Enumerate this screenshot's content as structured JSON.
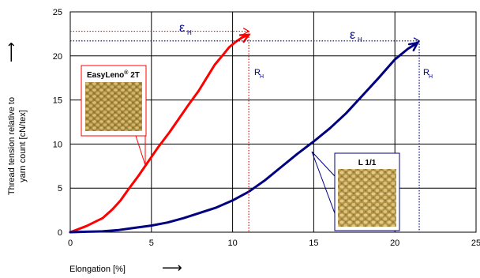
{
  "chart_data": {
    "type": "line",
    "xlabel": "Elongation [%]",
    "ylabel_line1": "Thread tension relative to",
    "ylabel_line2": "yarn count   [cN/tex]",
    "xlim": [
      0,
      25
    ],
    "ylim": [
      0,
      25
    ],
    "x_ticks": [
      "0",
      "5",
      "10",
      "15",
      "20",
      "25"
    ],
    "y_ticks": [
      "0",
      "5",
      "10",
      "15",
      "20",
      "25"
    ],
    "grid": true,
    "series": [
      {
        "name": "EasyLeno® 2T",
        "color": "#ff0000",
        "points": [
          [
            0,
            0
          ],
          [
            1,
            0.7
          ],
          [
            2,
            1.6
          ],
          [
            2.6,
            2.6
          ],
          [
            3.1,
            3.6
          ],
          [
            3.6,
            4.9
          ],
          [
            4.2,
            6.4
          ],
          [
            4.8,
            8.0
          ],
          [
            5.4,
            9.6
          ],
          [
            6.1,
            11.3
          ],
          [
            6.7,
            12.9
          ],
          [
            7.3,
            14.5
          ],
          [
            7.9,
            16.0
          ],
          [
            8.4,
            17.5
          ],
          [
            8.9,
            19.0
          ],
          [
            9.4,
            20.1
          ],
          [
            9.8,
            21.0
          ],
          [
            10.2,
            21.6
          ],
          [
            10.6,
            22.1
          ],
          [
            11.0,
            22.4
          ]
        ]
      },
      {
        "name": "L 1/1",
        "color": "#000080",
        "points": [
          [
            0,
            0
          ],
          [
            1,
            0.05
          ],
          [
            2,
            0.1
          ],
          [
            3,
            0.25
          ],
          [
            4,
            0.5
          ],
          [
            5,
            0.75
          ],
          [
            6,
            1.1
          ],
          [
            7,
            1.6
          ],
          [
            8,
            2.2
          ],
          [
            9,
            2.8
          ],
          [
            10,
            3.6
          ],
          [
            11,
            4.6
          ],
          [
            12,
            5.9
          ],
          [
            13,
            7.4
          ],
          [
            14,
            8.9
          ],
          [
            15,
            10.3
          ],
          [
            16,
            11.8
          ],
          [
            17,
            13.5
          ],
          [
            18,
            15.5
          ],
          [
            19,
            17.5
          ],
          [
            20,
            19.6
          ],
          [
            20.8,
            20.8
          ],
          [
            21.4,
            21.5
          ]
        ]
      }
    ],
    "annotations": {
      "epsilon_left": "ε",
      "epsilon_right": "ε",
      "subscript_h": "H",
      "r_left": "R",
      "r_right": "R",
      "label_easyleno_main": "EasyLeno",
      "label_easyleno_sup": "®",
      "label_easyleno_suffix": " 2T",
      "label_l11": "L 1/1"
    },
    "annotation_values": {
      "red_break_x": 11.0,
      "red_break_y": 22.8,
      "blue_break_x": 21.5,
      "blue_break_y": 21.7
    },
    "arrow_symbol": "⟶"
  }
}
